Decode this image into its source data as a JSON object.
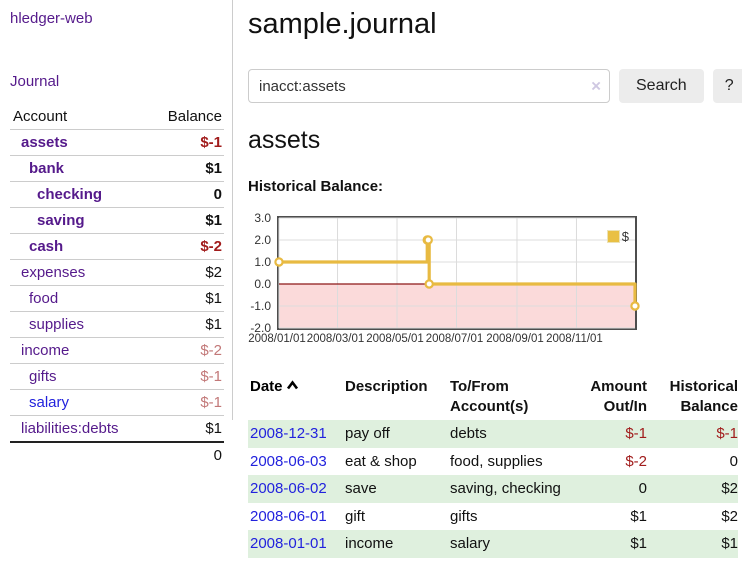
{
  "sidebar": {
    "app_title": "hledger-web",
    "nav": {
      "journal_label": "Journal"
    },
    "accounts_table": {
      "headers": {
        "account": "Account",
        "balance": "Balance"
      },
      "rows": [
        {
          "name": "assets",
          "balance": "$-1",
          "depth": 0,
          "strong": true,
          "tone": "neg"
        },
        {
          "name": "bank",
          "balance": "$1",
          "depth": 1,
          "strong": true,
          "tone": ""
        },
        {
          "name": "checking",
          "balance": "0",
          "depth": 2,
          "strong": true,
          "tone": ""
        },
        {
          "name": "saving",
          "balance": "$1",
          "depth": 2,
          "strong": true,
          "tone": ""
        },
        {
          "name": "cash",
          "balance": "$-2",
          "depth": 1,
          "strong": true,
          "tone": "neg"
        },
        {
          "name": "expenses",
          "balance": "$2",
          "depth": 0,
          "strong": false,
          "tone": ""
        },
        {
          "name": "food",
          "balance": "$1",
          "depth": 1,
          "strong": false,
          "tone": ""
        },
        {
          "name": "supplies",
          "balance": "$1",
          "depth": 1,
          "strong": false,
          "tone": ""
        },
        {
          "name": "income",
          "balance": "$-2",
          "depth": 0,
          "strong": false,
          "tone": "soft-neg"
        },
        {
          "name": "gifts",
          "balance": "$-1",
          "depth": 1,
          "strong": false,
          "tone": "soft-neg"
        },
        {
          "name": "salary",
          "balance": "$-1",
          "depth": 1,
          "strong": false,
          "tone": "soft-neg",
          "link": "unvisited"
        },
        {
          "name": "liabilities:debts",
          "balance": "$1",
          "depth": 0,
          "strong": false,
          "tone": ""
        }
      ],
      "total": "0"
    }
  },
  "main": {
    "title": "sample.journal",
    "search": {
      "value": "inacct:assets",
      "clear_icon": "×",
      "button_label": "Search",
      "help_label": "?"
    },
    "account_heading": "assets",
    "chart_label": "Historical Balance:",
    "register_table": {
      "headers": {
        "date": "Date",
        "description": "Description",
        "accounts": "To/From Account(s)",
        "amount": "Amount Out/In",
        "balance": "Historical Balance"
      },
      "rows": [
        {
          "date": "2008-12-31",
          "description": "pay off",
          "accounts": "debts",
          "amount": "$-1",
          "balance": "$-1",
          "amount_tone": "neg",
          "balance_tone": "neg",
          "shade": true
        },
        {
          "date": "2008-06-03",
          "description": "eat & shop",
          "accounts": "food, supplies",
          "amount": "$-2",
          "balance": "0",
          "amount_tone": "neg",
          "balance_tone": "",
          "shade": false
        },
        {
          "date": "2008-06-02",
          "description": "save",
          "accounts": "saving, checking",
          "amount": "0",
          "balance": "$2",
          "amount_tone": "",
          "balance_tone": "",
          "shade": true
        },
        {
          "date": "2008-06-01",
          "description": "gift",
          "accounts": "gifts",
          "amount": "$1",
          "balance": "$2",
          "amount_tone": "",
          "balance_tone": "",
          "shade": false
        },
        {
          "date": "2008-01-01",
          "description": "income",
          "accounts": "salary",
          "amount": "$1",
          "balance": "$1",
          "amount_tone": "",
          "balance_tone": "",
          "shade": true
        }
      ]
    }
  },
  "chart_data": {
    "type": "line",
    "title": "Historical Balance",
    "step": true,
    "series": [
      {
        "name": "$",
        "points": [
          [
            "2008-01-01",
            1
          ],
          [
            "2008-06-01",
            2
          ],
          [
            "2008-06-02",
            2
          ],
          [
            "2008-06-03",
            0
          ],
          [
            "2008-12-31",
            -1
          ]
        ]
      }
    ],
    "x_range": [
      "2008-01-01",
      "2008-12-31"
    ],
    "ylim": [
      -2,
      3
    ],
    "yticks": [
      3.0,
      2.0,
      1.0,
      0.0,
      -1.0,
      -2.0
    ],
    "xticks": [
      "2008/01/01",
      "2008/03/01",
      "2008/05/01",
      "2008/07/01",
      "2008/09/01",
      "2008/11/01"
    ],
    "legend": {
      "label": "$",
      "position": "top-right"
    },
    "grid": true,
    "colors": {
      "line": "#e8ba42",
      "marker_fill": "#ffffff",
      "negative_region": "#fbdada",
      "zero_line": "#8c1717",
      "grid": "#dcdcdc",
      "border": "#4d4d4d"
    }
  }
}
